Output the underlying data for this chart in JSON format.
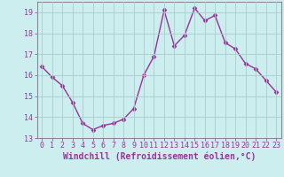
{
  "x": [
    0,
    1,
    2,
    3,
    4,
    5,
    6,
    7,
    8,
    9,
    10,
    11,
    12,
    13,
    14,
    15,
    16,
    17,
    18,
    19,
    20,
    21,
    22,
    23
  ],
  "y": [
    16.4,
    15.9,
    15.5,
    14.7,
    13.7,
    13.4,
    13.6,
    13.7,
    13.9,
    14.4,
    16.0,
    16.9,
    19.1,
    17.4,
    17.9,
    19.2,
    18.6,
    18.85,
    17.55,
    17.25,
    16.55,
    16.3,
    15.75,
    15.2
  ],
  "line_color": "#993399",
  "marker": "D",
  "marker_size": 2.5,
  "bg_color": "#cceeee",
  "grid_color": "#aacccc",
  "xlabel": "Windchill (Refroidissement éolien,°C)",
  "ylim": [
    13,
    19.5
  ],
  "xlim": [
    -0.5,
    23.5
  ],
  "yticks": [
    13,
    14,
    15,
    16,
    17,
    18,
    19
  ],
  "xticks": [
    0,
    1,
    2,
    3,
    4,
    5,
    6,
    7,
    8,
    9,
    10,
    11,
    12,
    13,
    14,
    15,
    16,
    17,
    18,
    19,
    20,
    21,
    22,
    23
  ],
  "tick_color": "#993399",
  "xlabel_fontsize": 7.0,
  "tick_fontsize": 6.0,
  "line_width": 1.0,
  "spine_color": "#888899"
}
